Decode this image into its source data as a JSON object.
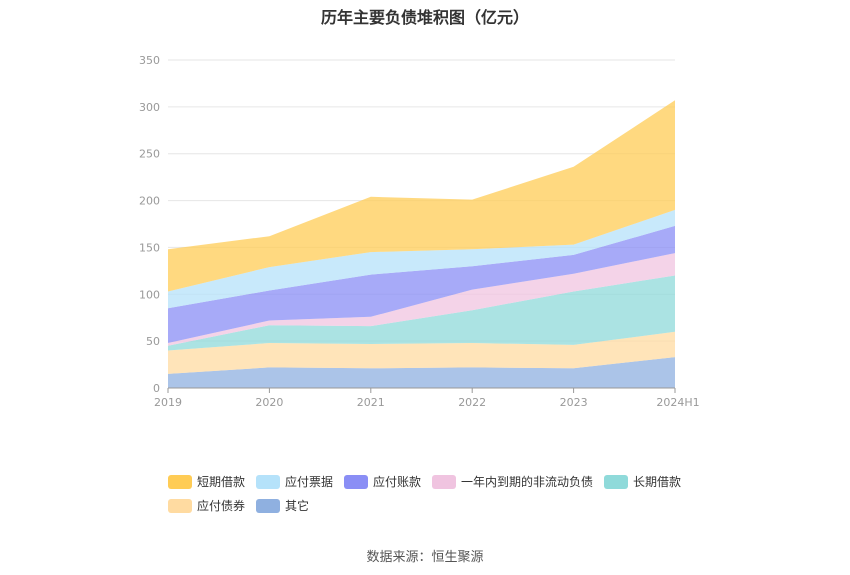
{
  "chart_data": {
    "type": "area",
    "stacked": true,
    "title": "历年主要负债堆积图（亿元）",
    "categories": [
      "2019",
      "2020",
      "2021",
      "2022",
      "2023",
      "2024H1"
    ],
    "ylim": [
      0,
      350
    ],
    "yticks": [
      0,
      50,
      100,
      150,
      200,
      250,
      300,
      350
    ],
    "grid": true,
    "legend_position": "bottom",
    "series": [
      {
        "name": "其它",
        "color": "#8fb0e0",
        "values": [
          15,
          22,
          21,
          22,
          21,
          33
        ]
      },
      {
        "name": "应付债券",
        "color": "#ffdba1",
        "values": [
          25,
          26,
          26,
          26,
          25,
          27
        ]
      },
      {
        "name": "长期借款",
        "color": "#8fdada",
        "values": [
          5,
          19,
          19,
          35,
          57,
          60
        ]
      },
      {
        "name": "一年内到期的非流动负债",
        "color": "#f0c4e0",
        "values": [
          3,
          5,
          10,
          22,
          19,
          24
        ]
      },
      {
        "name": "应付账款",
        "color": "#8a8ef5",
        "values": [
          37,
          32,
          45,
          25,
          20,
          29
        ]
      },
      {
        "name": "应付票据",
        "color": "#b5e2fa",
        "values": [
          18,
          25,
          24,
          18,
          11,
          17
        ]
      },
      {
        "name": "短期借款",
        "color": "#ffcc55",
        "values": [
          45,
          33,
          59,
          53,
          83,
          117
        ]
      }
    ],
    "legend_order": [
      "短期借款",
      "应付票据",
      "应付账款",
      "一年内到期的非流动负债",
      "长期借款",
      "应付债券",
      "其它"
    ]
  },
  "source": "数据来源：恒生聚源"
}
